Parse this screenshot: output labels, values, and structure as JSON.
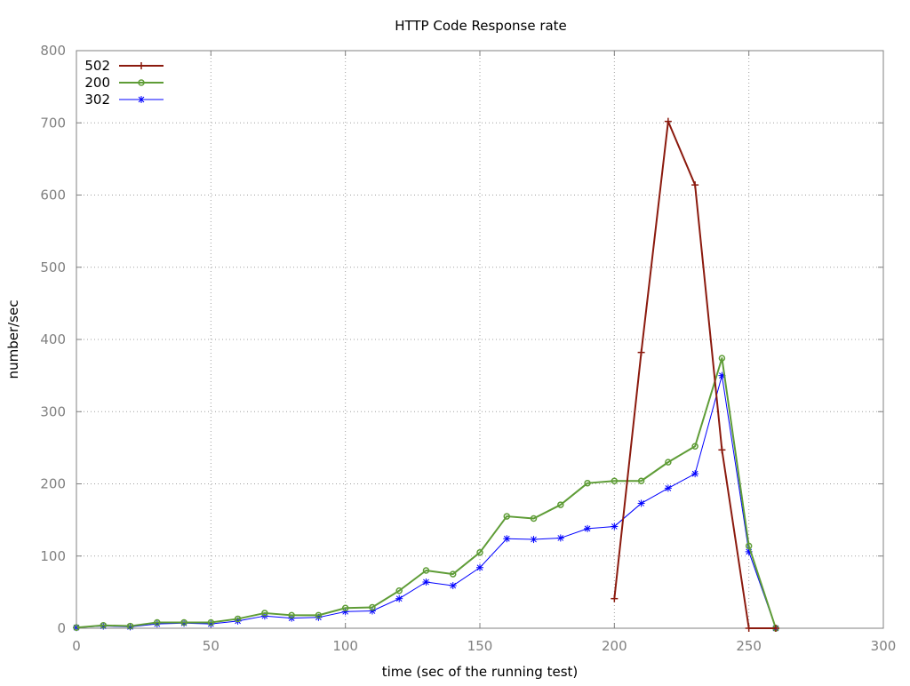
{
  "chart_data": {
    "type": "line",
    "title": "HTTP Code Response rate",
    "xlabel": "time (sec of the running test)",
    "ylabel": "number/sec",
    "xlim": [
      0,
      300
    ],
    "ylim": [
      0,
      800
    ],
    "xticks": [
      0,
      50,
      100,
      150,
      200,
      250,
      300
    ],
    "yticks": [
      0,
      100,
      200,
      300,
      400,
      500,
      600,
      700,
      800
    ],
    "grid": true,
    "legend_position": "top-left",
    "series": [
      {
        "name": "502",
        "color": "#8b1a0e",
        "marker": "plus",
        "x": [
          200,
          210,
          220,
          230,
          240,
          250,
          260
        ],
        "y": [
          41,
          382,
          702,
          614,
          247,
          0,
          0
        ]
      },
      {
        "name": "200",
        "color": "#5e9c36",
        "marker": "circle",
        "x": [
          0,
          10,
          20,
          30,
          40,
          50,
          60,
          70,
          80,
          90,
          100,
          110,
          120,
          130,
          140,
          150,
          160,
          170,
          180,
          190,
          200,
          210,
          220,
          230,
          240,
          250,
          260
        ],
        "y": [
          1,
          4,
          3,
          8,
          8,
          8,
          13,
          21,
          18,
          18,
          28,
          29,
          52,
          80,
          75,
          105,
          155,
          152,
          171,
          201,
          204,
          204,
          230,
          252,
          374,
          114,
          0
        ]
      },
      {
        "name": "302",
        "color": "#0000ff",
        "marker": "star",
        "x": [
          0,
          10,
          20,
          30,
          40,
          50,
          60,
          70,
          80,
          90,
          100,
          110,
          120,
          130,
          140,
          150,
          160,
          170,
          180,
          190,
          200,
          210,
          220,
          230,
          240,
          250,
          260
        ],
        "y": [
          1,
          3,
          2,
          6,
          7,
          6,
          10,
          17,
          14,
          15,
          23,
          24,
          41,
          64,
          59,
          84,
          124,
          123,
          125,
          138,
          141,
          173,
          194,
          214,
          350,
          106,
          0
        ]
      }
    ]
  }
}
